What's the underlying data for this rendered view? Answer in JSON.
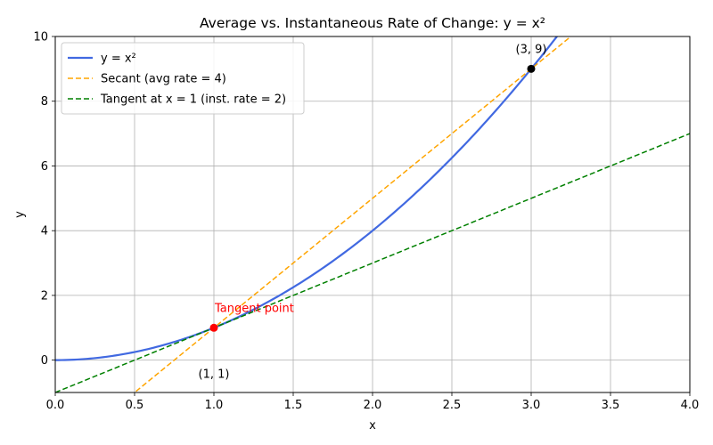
{
  "chart_data": {
    "type": "line",
    "title": "Average vs. Instantaneous Rate of Change: y = x²",
    "xlabel": "x",
    "ylabel": "y",
    "xlim": [
      0,
      4
    ],
    "ylim": [
      -1,
      10
    ],
    "grid": true,
    "legend_position": "top-left",
    "x_ticks": [
      "0.0",
      "0.5",
      "1.0",
      "1.5",
      "2.0",
      "2.5",
      "3.0",
      "3.5",
      "4.0"
    ],
    "y_ticks": [
      "0",
      "2",
      "4",
      "6",
      "8",
      "10"
    ],
    "series": [
      {
        "name": "y = x²",
        "kind": "curve",
        "function": "x^2",
        "color": "#4169e1",
        "style": "solid"
      },
      {
        "name": "Secant (avg rate = 4)",
        "kind": "line",
        "slope": 4,
        "intercept": -3,
        "color": "#ffa500",
        "style": "dashed"
      },
      {
        "name": "Tangent at x = 1 (inst. rate = 2)",
        "kind": "line",
        "slope": 2,
        "intercept": -1,
        "color": "#008000",
        "style": "dashed"
      }
    ],
    "points": [
      {
        "x": 1,
        "y": 1,
        "color": "#ff0000",
        "label": "(1, 1)"
      },
      {
        "x": 3,
        "y": 9,
        "color": "#000000",
        "label": "(3, 9)"
      }
    ],
    "annotations": [
      {
        "text": "Tangent point",
        "color": "#ff0000"
      }
    ]
  }
}
